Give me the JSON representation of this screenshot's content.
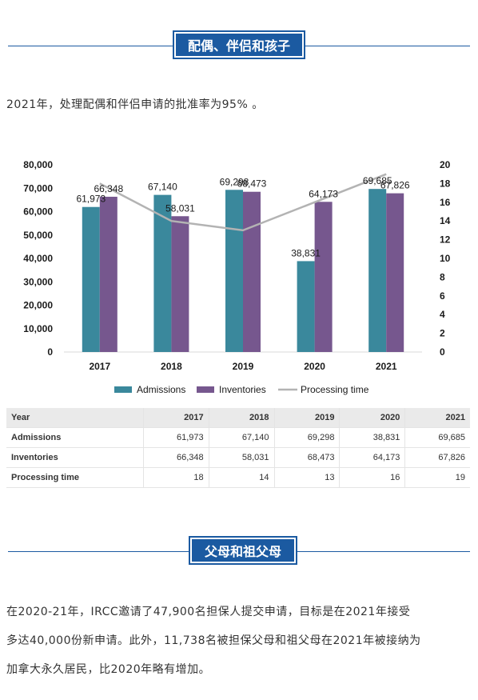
{
  "section1": {
    "title": "配偶、伴侣和孩子"
  },
  "intro_text": "2021年，处理配偶和伴侣申请的批准率为95% 。",
  "chart_data": {
    "type": "bar",
    "categories": [
      "2017",
      "2018",
      "2019",
      "2020",
      "2021"
    ],
    "series": [
      {
        "name": "Admissions",
        "kind": "bar",
        "axis": "left",
        "color": "#3a889c",
        "values": [
          61973,
          67140,
          69298,
          38831,
          69685
        ],
        "labels": [
          "61,973",
          "67,140",
          "69,298",
          "38,831",
          "69,685"
        ]
      },
      {
        "name": "Inventories",
        "kind": "bar",
        "axis": "left",
        "color": "#76578e",
        "values": [
          66348,
          58031,
          68473,
          64173,
          67826
        ],
        "labels": [
          "66,348",
          "58,031",
          "68,473",
          "64,173",
          "67,826"
        ]
      },
      {
        "name": "Processing time",
        "kind": "line",
        "axis": "right",
        "color": "#b3b3b3",
        "values": [
          18,
          14,
          13,
          16,
          19
        ]
      }
    ],
    "y_left": {
      "range": [
        0,
        80000
      ],
      "ticks": [
        "0",
        "10,000",
        "20,000",
        "30,000",
        "40,000",
        "50,000",
        "60,000",
        "70,000",
        "80,000"
      ]
    },
    "y_right": {
      "range": [
        0,
        20
      ],
      "ticks": [
        "0",
        "2",
        "4",
        "6",
        "8",
        "10",
        "12",
        "14",
        "16",
        "18",
        "20"
      ]
    },
    "grid": false,
    "legend_position": "bottom"
  },
  "table": {
    "header": [
      "Year",
      "2017",
      "2018",
      "2019",
      "2020",
      "2021"
    ],
    "rows": [
      [
        "Admissions",
        "61,973",
        "67,140",
        "69,298",
        "38,831",
        "69,685"
      ],
      [
        "Inventories",
        "66,348",
        "58,031",
        "68,473",
        "64,173",
        "67,826"
      ],
      [
        "Processing time",
        "18",
        "14",
        "13",
        "16",
        "19"
      ]
    ]
  },
  "section2": {
    "title": "父母和祖父母"
  },
  "para2": [
    "在2020-21年，IRCC邀请了47,900名担保人提交申请，目标是在2021年接受",
    "多达40,000份新申请。此外，11,738名被担保父母和祖父母在2021年被接纳为",
    "加拿大永久居民，比2020年略有增加。"
  ]
}
